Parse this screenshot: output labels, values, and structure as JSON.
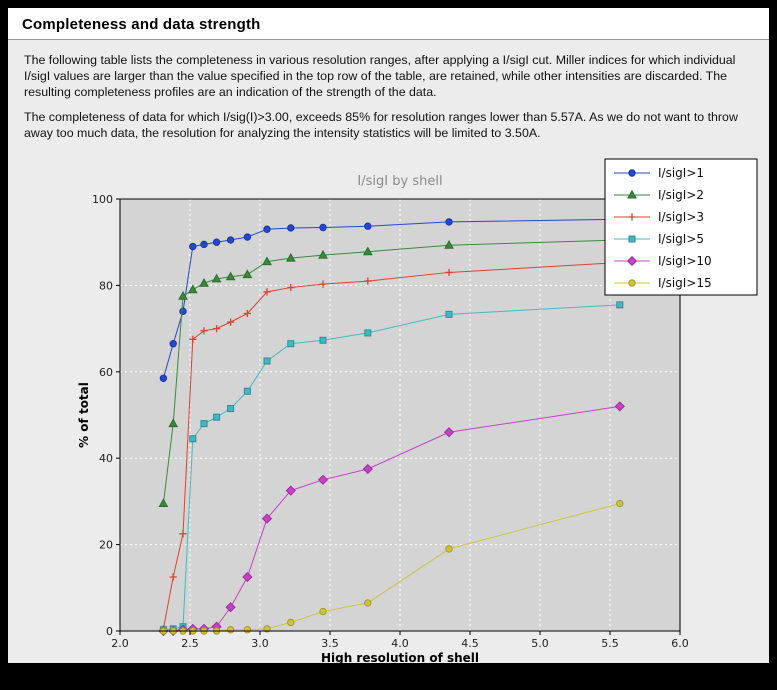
{
  "page": {
    "title": "Completeness and data strength",
    "paragraphs": [
      "The following table lists the completeness in various resolution ranges, after applying a I/sigI cut. Miller indices for which individual I/sigI values are larger than the value specified in the top row of the table, are retained, while other intensities are discarded. The resulting completeness profiles are an indication of the strength of the data.",
      "The completeness of data for which I/sig(I)>3.00, exceeds  85% for resolution ranges lower than 5.57A. As we do not want to throw away too much data, the resolution for analyzing the intensity statistics will be limited to 3.50A."
    ]
  },
  "chart_data": {
    "type": "line",
    "title": "I/sigI by shell",
    "xlabel": "High resolution of shell",
    "ylabel": "% of total",
    "xlim": [
      2.0,
      6.0
    ],
    "ylim": [
      0,
      100
    ],
    "xticks": [
      2.0,
      2.5,
      3.0,
      3.5,
      4.0,
      4.5,
      5.0,
      5.5,
      6.0
    ],
    "yticks": [
      0,
      20,
      40,
      60,
      80,
      100
    ],
    "grid": true,
    "legend_position": "top-right",
    "colors": {
      "plot_bg": "#d4d4d4",
      "grid": "#ffffff",
      "frame": "#000000",
      "title_text": "#8a8a8a",
      "page_bg": "#ececec",
      "outer_frame": "#000000",
      "legend_bg": "#ffffff"
    },
    "x": [
      2.31,
      2.38,
      2.45,
      2.52,
      2.6,
      2.69,
      2.79,
      2.91,
      3.05,
      3.22,
      3.45,
      3.77,
      4.35,
      5.57
    ],
    "series": [
      {
        "name": "I/sigI>1",
        "color": "#2547cf",
        "edge": "#1a35a8",
        "marker": "circle",
        "values": [
          58.5,
          66.5,
          74.0,
          89.0,
          89.5,
          90.0,
          90.5,
          91.2,
          93.0,
          93.3,
          93.4,
          93.7,
          94.7,
          95.3
        ]
      },
      {
        "name": "I/sigI>2",
        "color": "#3a8a3a",
        "edge": "#2c6b2c",
        "marker": "triangle",
        "values": [
          29.5,
          48.0,
          77.5,
          79.0,
          80.5,
          81.5,
          82.0,
          82.5,
          85.5,
          86.3,
          87.0,
          87.8,
          89.3,
          90.5
        ]
      },
      {
        "name": "I/sigI>3",
        "color": "#dd4030",
        "edge": "#dd4030",
        "marker": "plus",
        "values": [
          0.5,
          12.5,
          22.5,
          67.5,
          69.5,
          70.0,
          71.5,
          73.5,
          78.5,
          79.5,
          80.3,
          81.0,
          83.0,
          85.3
        ]
      },
      {
        "name": "I/sigI>5",
        "color": "#45b8c4",
        "edge": "#2d8c96",
        "marker": "square",
        "values": [
          0.3,
          0.5,
          1.0,
          44.5,
          48.0,
          49.5,
          51.5,
          55.5,
          62.5,
          66.5,
          67.3,
          69.0,
          73.3,
          75.5
        ]
      },
      {
        "name": "I/sigI>10",
        "color": "#c840c8",
        "edge": "#9c2f9c",
        "marker": "diamond",
        "values": [
          0.0,
          0.0,
          0.3,
          0.5,
          0.5,
          1.0,
          5.5,
          12.5,
          26.0,
          32.5,
          35.0,
          37.5,
          46.0,
          52.0
        ]
      },
      {
        "name": "I/sigI>15",
        "color": "#cfc43a",
        "edge": "#a39a2a",
        "marker": "circle",
        "values": [
          0.0,
          0.0,
          0.0,
          0.0,
          0.0,
          0.0,
          0.3,
          0.3,
          0.5,
          2.0,
          4.5,
          6.5,
          19.0,
          29.5
        ]
      }
    ]
  }
}
